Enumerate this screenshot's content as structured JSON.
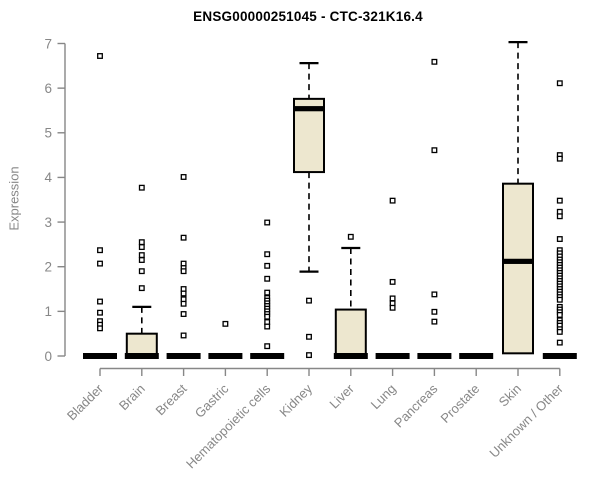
{
  "chart_data": {
    "type": "boxplot",
    "title": "ENSG00000251045 - CTC-321K16.4",
    "ylabel": "Expression",
    "xlabel": "",
    "ylim": [
      0,
      7
    ],
    "yticks": [
      0,
      1,
      2,
      3,
      4,
      5,
      6,
      7
    ],
    "grid": false,
    "legend": null,
    "categories": [
      "Bladder",
      "Brain",
      "Breast",
      "Gastric",
      "Hematopoietic cells",
      "Kidney",
      "Liver",
      "Lung",
      "Pancreas",
      "Prostate",
      "Skin",
      "Unknown / Other"
    ],
    "series": [
      {
        "category": "Bladder",
        "q1": 0,
        "median": 0,
        "q3": 0,
        "whisker_low": 0,
        "whisker_high": 0,
        "outliers": [
          6.72,
          2.37,
          2.07,
          1.22,
          0.97,
          0.78,
          0.7,
          0.62
        ]
      },
      {
        "category": "Brain",
        "q1": 0,
        "median": 0,
        "q3": 0.5,
        "whisker_low": 0,
        "whisker_high": 1.1,
        "outliers": [
          3.77,
          2.55,
          2.44,
          2.26,
          2.15,
          1.9,
          1.52
        ]
      },
      {
        "category": "Breast",
        "q1": 0,
        "median": 0,
        "q3": 0,
        "whisker_low": 0,
        "whisker_high": 0,
        "outliers": [
          4.01,
          2.65,
          2.07,
          1.97,
          1.9,
          1.5,
          1.4,
          1.27,
          1.17,
          0.94,
          0.46
        ]
      },
      {
        "category": "Gastric",
        "q1": 0,
        "median": 0,
        "q3": 0,
        "whisker_low": 0,
        "whisker_high": 0,
        "outliers": [
          0.72
        ]
      },
      {
        "category": "Hematopoietic cells",
        "q1": 0,
        "median": 0,
        "q3": 0,
        "whisker_low": 0,
        "whisker_high": 0,
        "outliers": [
          2.99,
          2.28,
          2.02,
          1.73,
          1.42,
          1.3,
          1.24,
          1.18,
          1.12,
          1.06,
          1.0,
          0.94,
          0.88,
          0.76,
          0.66,
          0.22
        ]
      },
      {
        "category": "Kidney",
        "q1": 4.12,
        "median": 5.54,
        "q3": 5.76,
        "whisker_low": 1.89,
        "whisker_high": 6.56,
        "outliers": [
          1.24,
          0.43,
          0.02
        ]
      },
      {
        "category": "Liver",
        "q1": 0,
        "median": 0,
        "q3": 1.04,
        "whisker_low": 0,
        "whisker_high": 2.42,
        "outliers": [
          2.67
        ]
      },
      {
        "category": "Lung",
        "q1": 0,
        "median": 0,
        "q3": 0,
        "whisker_low": 0,
        "whisker_high": 0,
        "outliers": [
          3.48,
          1.66,
          1.29,
          1.18,
          1.08
        ]
      },
      {
        "category": "Pancreas",
        "q1": 0,
        "median": 0,
        "q3": 0,
        "whisker_low": 0,
        "whisker_high": 0,
        "outliers": [
          6.59,
          4.61,
          1.38,
          0.99,
          0.77
        ]
      },
      {
        "category": "Prostate",
        "q1": 0,
        "median": 0,
        "q3": 0,
        "whisker_low": 0,
        "whisker_high": 0,
        "outliers": []
      },
      {
        "category": "Skin",
        "q1": 0.06,
        "median": 2.12,
        "q3": 3.86,
        "whisker_low": null,
        "whisker_high": 7.03,
        "outliers": []
      },
      {
        "category": "Unknown / Other",
        "q1": 0,
        "median": 0,
        "q3": 0,
        "whisker_low": 0,
        "whisker_high": 0,
        "outliers": [
          6.11,
          4.5,
          4.42,
          3.48,
          3.23,
          3.13,
          2.62,
          2.37,
          2.3,
          2.23,
          2.16,
          2.1,
          2.04,
          1.98,
          1.92,
          1.86,
          1.8,
          1.74,
          1.68,
          1.62,
          1.56,
          1.5,
          1.44,
          1.38,
          1.32,
          1.26,
          1.1,
          1.04,
          0.98,
          0.92,
          0.8,
          0.74,
          0.68,
          0.6,
          0.54,
          0.3
        ]
      }
    ],
    "colors": {
      "box_fill": "#EDE7CF",
      "box_stroke": "#000000",
      "median": "#000000",
      "axis": "#878787",
      "tick_label": "#878787",
      "title": "#000000",
      "background": "#FFFFFF"
    }
  }
}
